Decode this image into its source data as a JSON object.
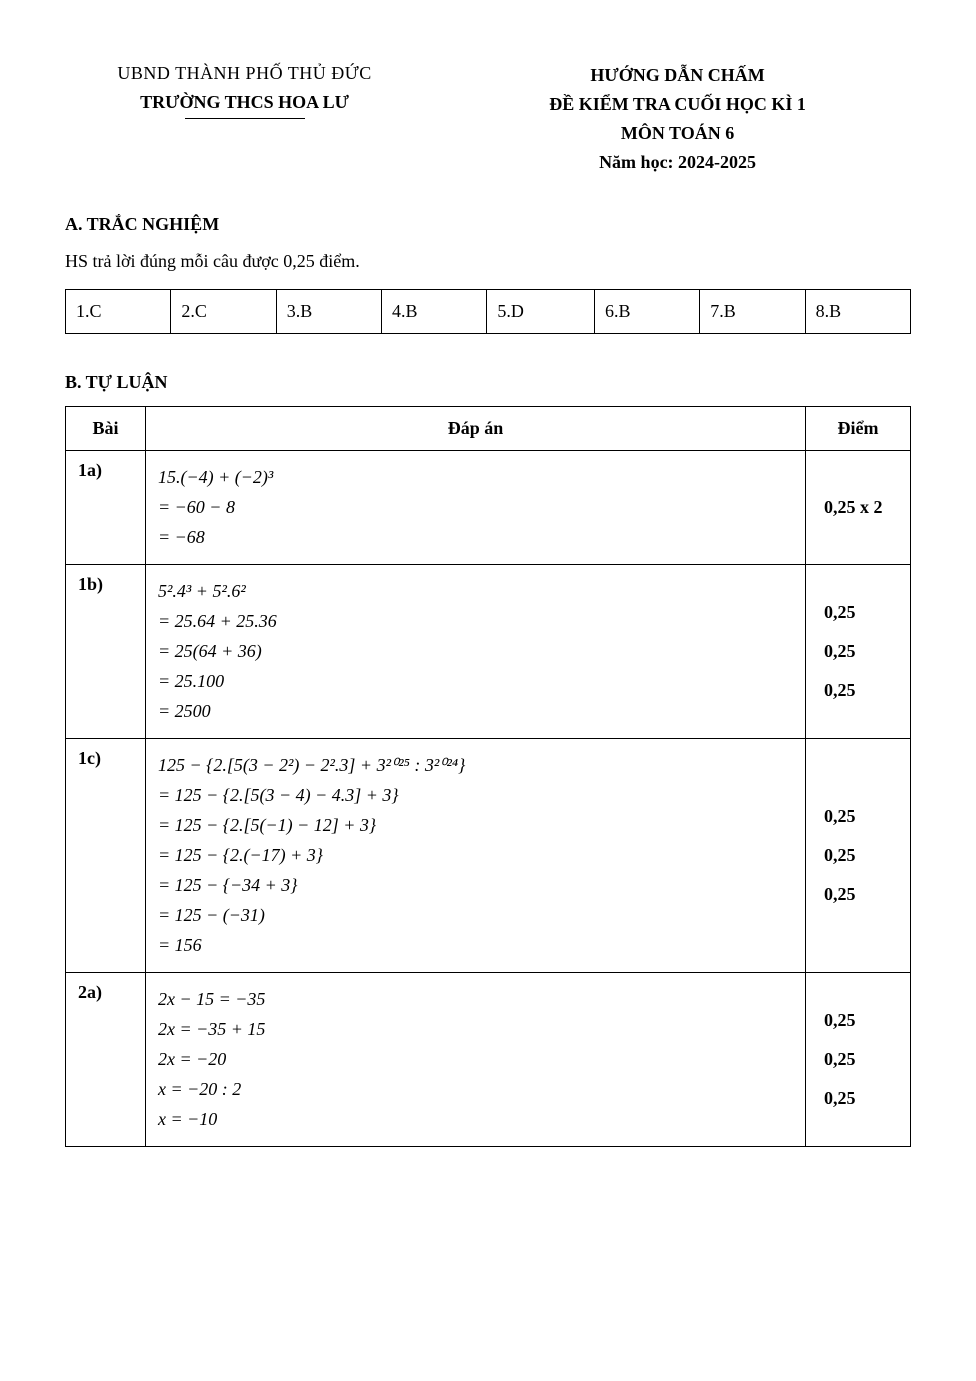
{
  "header": {
    "left_line1": "UBND THÀNH PHỐ THỦ ĐỨC",
    "left_line2": "TRƯỜNG THCS HOA LƯ",
    "right_line1": "HƯỚNG DẪN CHẤM",
    "right_line2": "ĐỀ KIỂM TRA CUỐI HỌC KÌ 1",
    "right_line3": "MÔN TOÁN 6",
    "right_line4": "Năm học: 2024-2025"
  },
  "section_a": {
    "title": "A. TRẮC NGHIỆM",
    "note": "HS trả lời đúng mỗi câu được 0,25 điểm.",
    "answers": [
      "1.C",
      "2.C",
      "3.B",
      "4.B",
      "5.D",
      "6.B",
      "7.B",
      "8.B"
    ]
  },
  "section_b": {
    "title": "B. TỰ LUẬN",
    "columns": [
      "Bài",
      "Đáp án",
      "Điểm"
    ],
    "rows": [
      {
        "bai": "1a)",
        "lines": [
          "15.(−4) + (−2)³",
          "= −60 − 8",
          "= −68"
        ],
        "diem": [
          "0,25 x 2"
        ]
      },
      {
        "bai": "1b)",
        "lines": [
          "5².4³ + 5².6²",
          "= 25.64 + 25.36",
          "= 25(64 + 36)",
          "= 25.100",
          "= 2500"
        ],
        "diem": [
          "0,25",
          "0,25",
          "0,25"
        ]
      },
      {
        "bai": "1c)",
        "lines": [
          "125 − {2.[5(3 − 2²) − 2².3] + 3²⁰²⁵ : 3²⁰²⁴}",
          "= 125 − {2.[5(3 − 4) − 4.3] + 3}",
          "= 125 − {2.[5(−1) − 12] + 3}",
          "= 125 − {2.(−17) + 3}",
          "= 125 − {−34 + 3}",
          "= 125 − (−31)",
          "= 156"
        ],
        "diem": [
          "0,25",
          "0,25",
          "0,25"
        ]
      },
      {
        "bai": "2a)",
        "lines": [
          "2x − 15 = −35",
          "2x = −35 + 15",
          "2x = −20",
          "x = −20 : 2",
          "x = −10"
        ],
        "diem": [
          "0,25",
          "0,25",
          "0,25"
        ]
      }
    ]
  },
  "styles": {
    "page_bg": "#ffffff",
    "text_color": "#000000",
    "border_color": "#000000",
    "base_fontsize": 18,
    "header_fontsize": 18,
    "table_fontsize": 18,
    "font_family": "Times New Roman"
  }
}
